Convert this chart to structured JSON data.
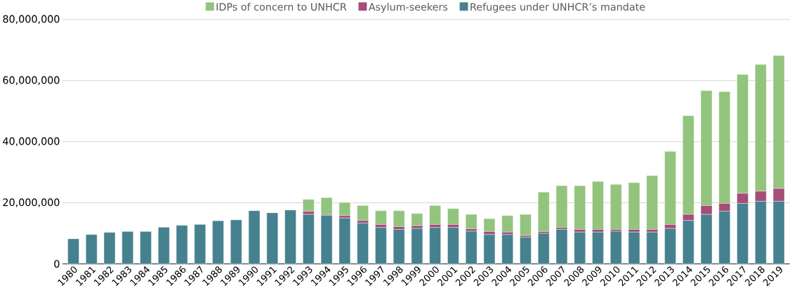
{
  "chart_data": {
    "type": "bar",
    "stacked": true,
    "legend": "top",
    "grid": "y",
    "categories": [
      "1980",
      "1981",
      "1982",
      "1983",
      "1984",
      "1985",
      "1986",
      "1987",
      "1988",
      "1989",
      "1990",
      "1991",
      "1992",
      "1993",
      "1994",
      "1995",
      "1996",
      "1997",
      "1998",
      "1999",
      "2000",
      "2001",
      "2002",
      "2003",
      "2004",
      "2005",
      "2006",
      "2007",
      "2008",
      "2009",
      "2010",
      "2011",
      "2012",
      "2013",
      "2014",
      "2015",
      "2016",
      "2017",
      "2018",
      "2019"
    ],
    "ylim": [
      0,
      80000000
    ],
    "yticks": [
      {
        "value": 0,
        "label": "0"
      },
      {
        "value": 20000000,
        "label": "20,000,000"
      },
      {
        "value": 40000000,
        "label": "40,000,000"
      },
      {
        "value": 60000000,
        "label": "60,000,000"
      },
      {
        "value": 80000000,
        "label": "80,000,000"
      }
    ],
    "series": [
      {
        "name": "Refugees under UNHCR’s mandate",
        "color": "#46818f",
        "values": [
          8200000,
          9600000,
          10300000,
          10600000,
          10600000,
          12000000,
          12600000,
          12900000,
          14100000,
          14400000,
          17400000,
          16700000,
          17600000,
          16200000,
          15900000,
          15000000,
          13300000,
          11900000,
          11300000,
          11600000,
          11900000,
          11900000,
          10700000,
          9600000,
          9600000,
          8700000,
          10000000,
          11300000,
          10400000,
          10400000,
          10700000,
          10400000,
          10400000,
          11600000,
          14200000,
          16200000,
          17200000,
          19800000,
          20500000,
          20500000
        ]
      },
      {
        "name": "Asylum-seekers",
        "color": "#a64d79",
        "values": [
          null,
          null,
          null,
          null,
          null,
          null,
          null,
          null,
          null,
          null,
          null,
          null,
          null,
          1000000,
          300000,
          800000,
          900000,
          1000000,
          900000,
          900000,
          1000000,
          1000000,
          800000,
          1000000,
          800000,
          600000,
          600000,
          600000,
          900000,
          900000,
          600000,
          900000,
          900000,
          1300000,
          2000000,
          2900000,
          2600000,
          3300000,
          3300000,
          4200000
        ]
      },
      {
        "name": "IDPs of concern to UNHCR",
        "color": "#93c47d",
        "values": [
          null,
          null,
          null,
          null,
          null,
          null,
          null,
          null,
          null,
          null,
          null,
          null,
          null,
          3900000,
          5500000,
          4300000,
          4900000,
          4500000,
          5200000,
          4000000,
          6200000,
          5200000,
          4700000,
          4200000,
          5400000,
          6900000,
          12900000,
          13700000,
          14300000,
          15700000,
          14700000,
          15300000,
          17600000,
          23900000,
          32300000,
          37600000,
          36600000,
          38900000,
          41500000,
          43500000
        ]
      }
    ]
  }
}
